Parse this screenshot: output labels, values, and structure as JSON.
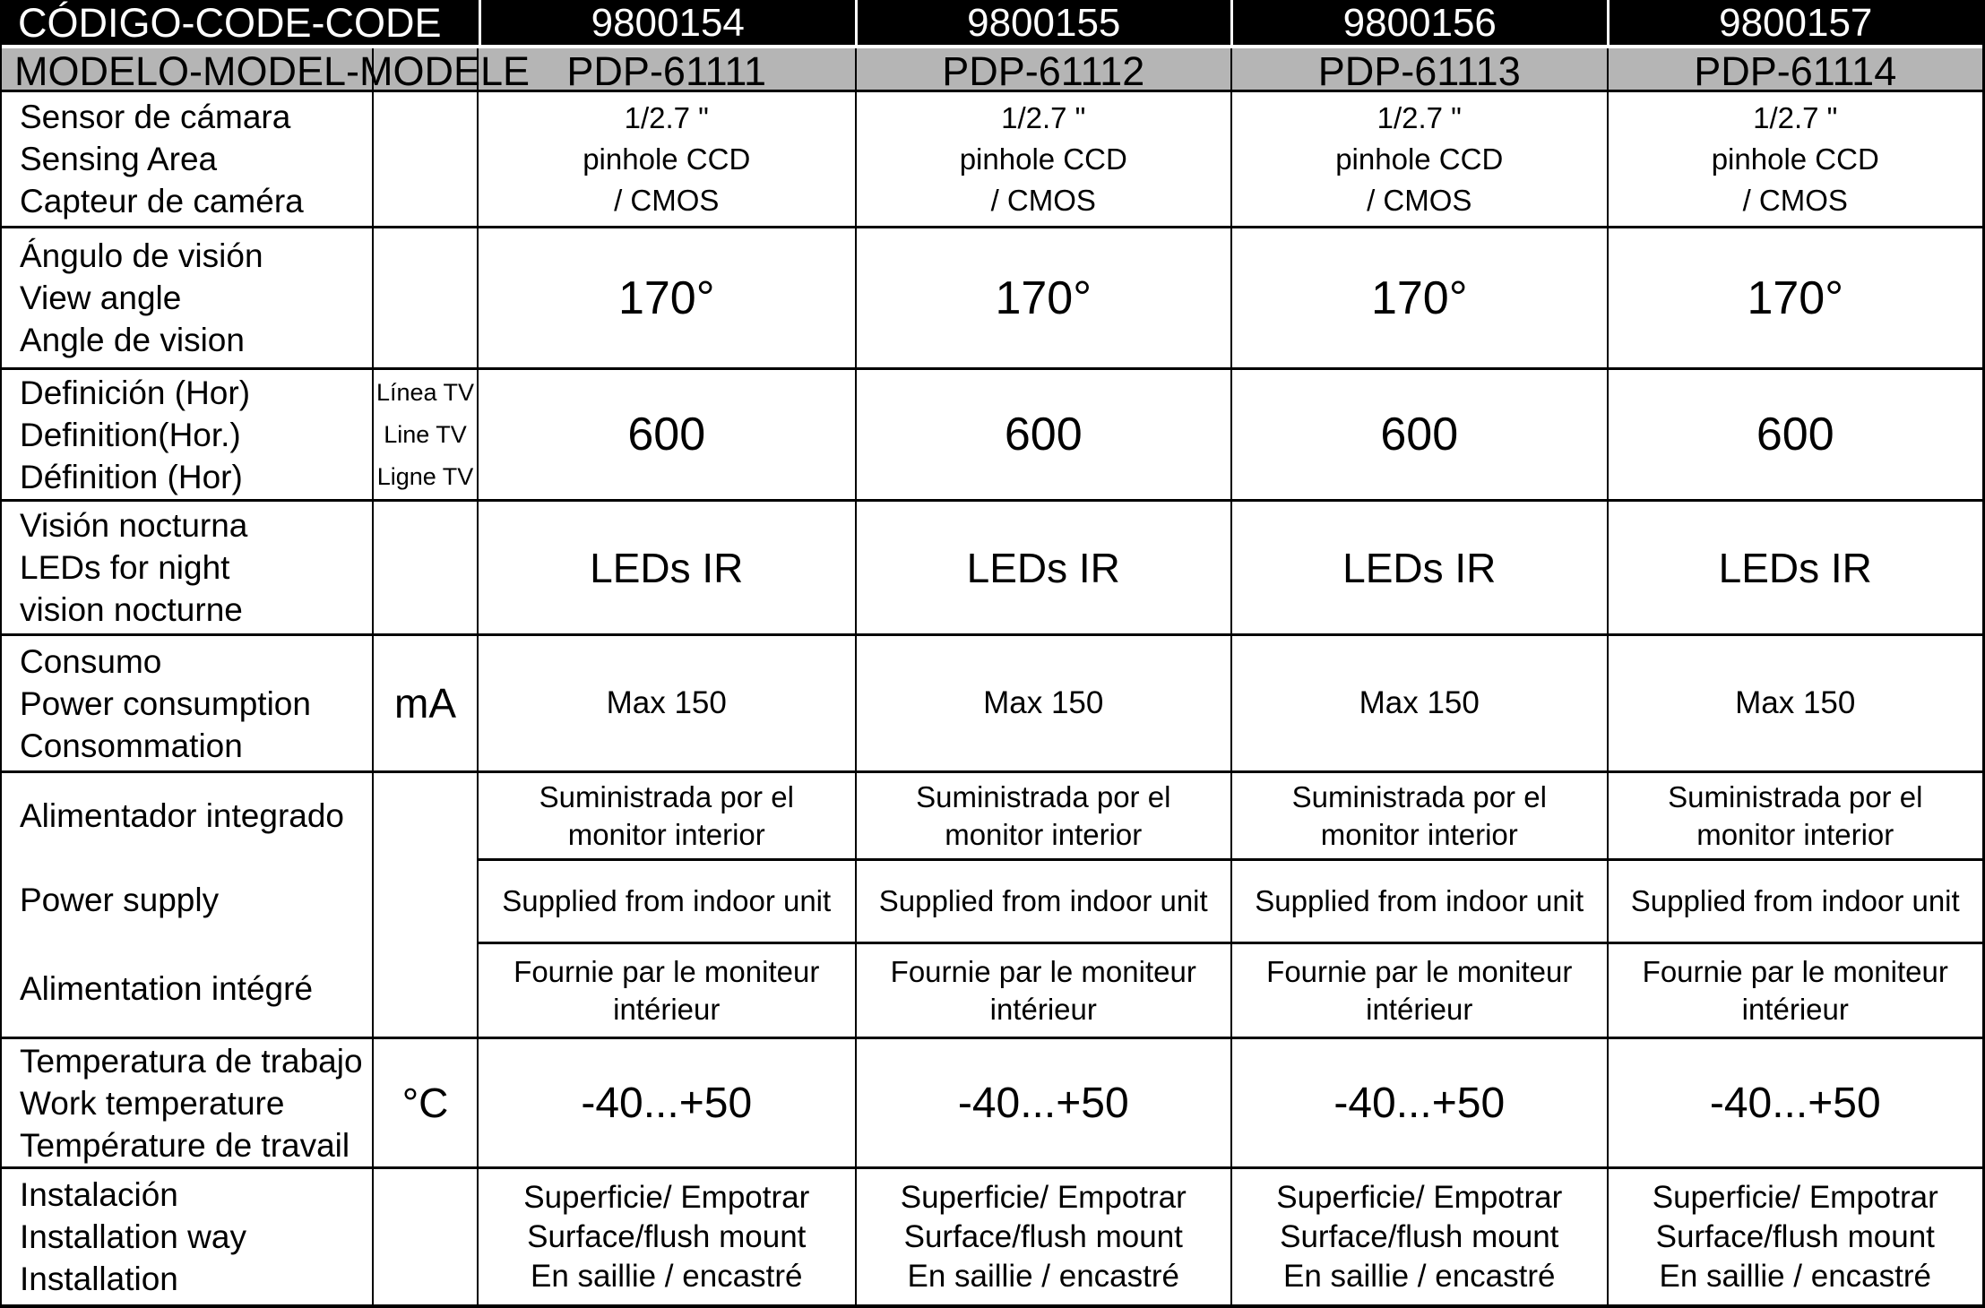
{
  "colors": {
    "code_header_bg": "#000000",
    "code_header_text": "#ffffff",
    "model_header_bg": "#b5b5b5",
    "border": "#000000"
  },
  "table": {
    "code_header": {
      "label": "CÓDIGO-CODE-CODE",
      "codes": [
        "9800154",
        "9800155",
        "9800156",
        "9800157"
      ]
    },
    "model_header": {
      "label": "MODELO-MODEL-MODELE",
      "models": [
        "PDP-61111",
        "PDP-61112",
        "PDP-61113",
        "PDP-61114"
      ]
    },
    "rows": [
      {
        "id": "sensor",
        "label": "Sensor de cámara\nSensing Area\nCapteur de caméra",
        "unit": "",
        "values": [
          "1/2.7 \"\npinhole CCD\n/ CMOS",
          "1/2.7 \"\npinhole CCD\n/ CMOS",
          "1/2.7 \"\npinhole CCD\n/ CMOS",
          "1/2.7 \"\npinhole CCD\n/ CMOS"
        ]
      },
      {
        "id": "view-angle",
        "label": "Ángulo de visión\nView angle\nAngle de vision",
        "unit": "",
        "values": [
          "170°",
          "170°",
          "170°",
          "170°"
        ]
      },
      {
        "id": "definition",
        "label": "Definición (Hor)\nDefinition(Hor.)\nDéfinition (Hor)",
        "unit": "Línea TV\nLine TV\nLigne TV",
        "values": [
          "600",
          "600",
          "600",
          "600"
        ]
      },
      {
        "id": "night-vision",
        "label": "Visión nocturna\nLEDs for night\nvision nocturne",
        "unit": "",
        "values": [
          "LEDs IR",
          "LEDs IR",
          "LEDs IR",
          "LEDs IR"
        ]
      },
      {
        "id": "consumption",
        "label": "Consumo\nPower consumption\nConsommation",
        "unit": "mA",
        "values": [
          "Max 150",
          "Max 150",
          "Max 150",
          "Max 150"
        ]
      },
      {
        "id": "power-supply",
        "label_segments": [
          "Alimentador integrado",
          "Power supply",
          "Alimentation intégré"
        ],
        "unit": "",
        "sub_rows": [
          {
            "values": [
              "Suministrada por el\nmonitor interior",
              "Suministrada por el\nmonitor interior",
              "Suministrada por el\nmonitor interior",
              "Suministrada por el\nmonitor interior"
            ]
          },
          {
            "values": [
              "Supplied from indoor unit",
              "Supplied from indoor unit",
              "Supplied from indoor unit",
              "Supplied from indoor unit"
            ]
          },
          {
            "values": [
              "Fournie par le moniteur\nintérieur",
              "Fournie par le moniteur\nintérieur",
              "Fournie par le moniteur\nintérieur",
              "Fournie par le moniteur\nintérieur"
            ]
          }
        ]
      },
      {
        "id": "temperature",
        "label": "Temperatura de trabajo\nWork temperature\nTempérature de travail",
        "unit": "°C",
        "values": [
          "-40...+50",
          "-40...+50",
          "-40...+50",
          "-40...+50"
        ]
      },
      {
        "id": "installation",
        "label": "Instalación\nInstallation way\nInstallation",
        "unit": "",
        "values": [
          "Superficie/ Empotrar\nSurface/flush mount\nEn saillie / encastré",
          "Superficie/ Empotrar\nSurface/flush mount\nEn saillie / encastré",
          "Superficie/ Empotrar\nSurface/flush mount\nEn saillie / encastré",
          "Superficie/ Empotrar\nSurface/flush mount\nEn saillie / encastré"
        ]
      }
    ]
  }
}
